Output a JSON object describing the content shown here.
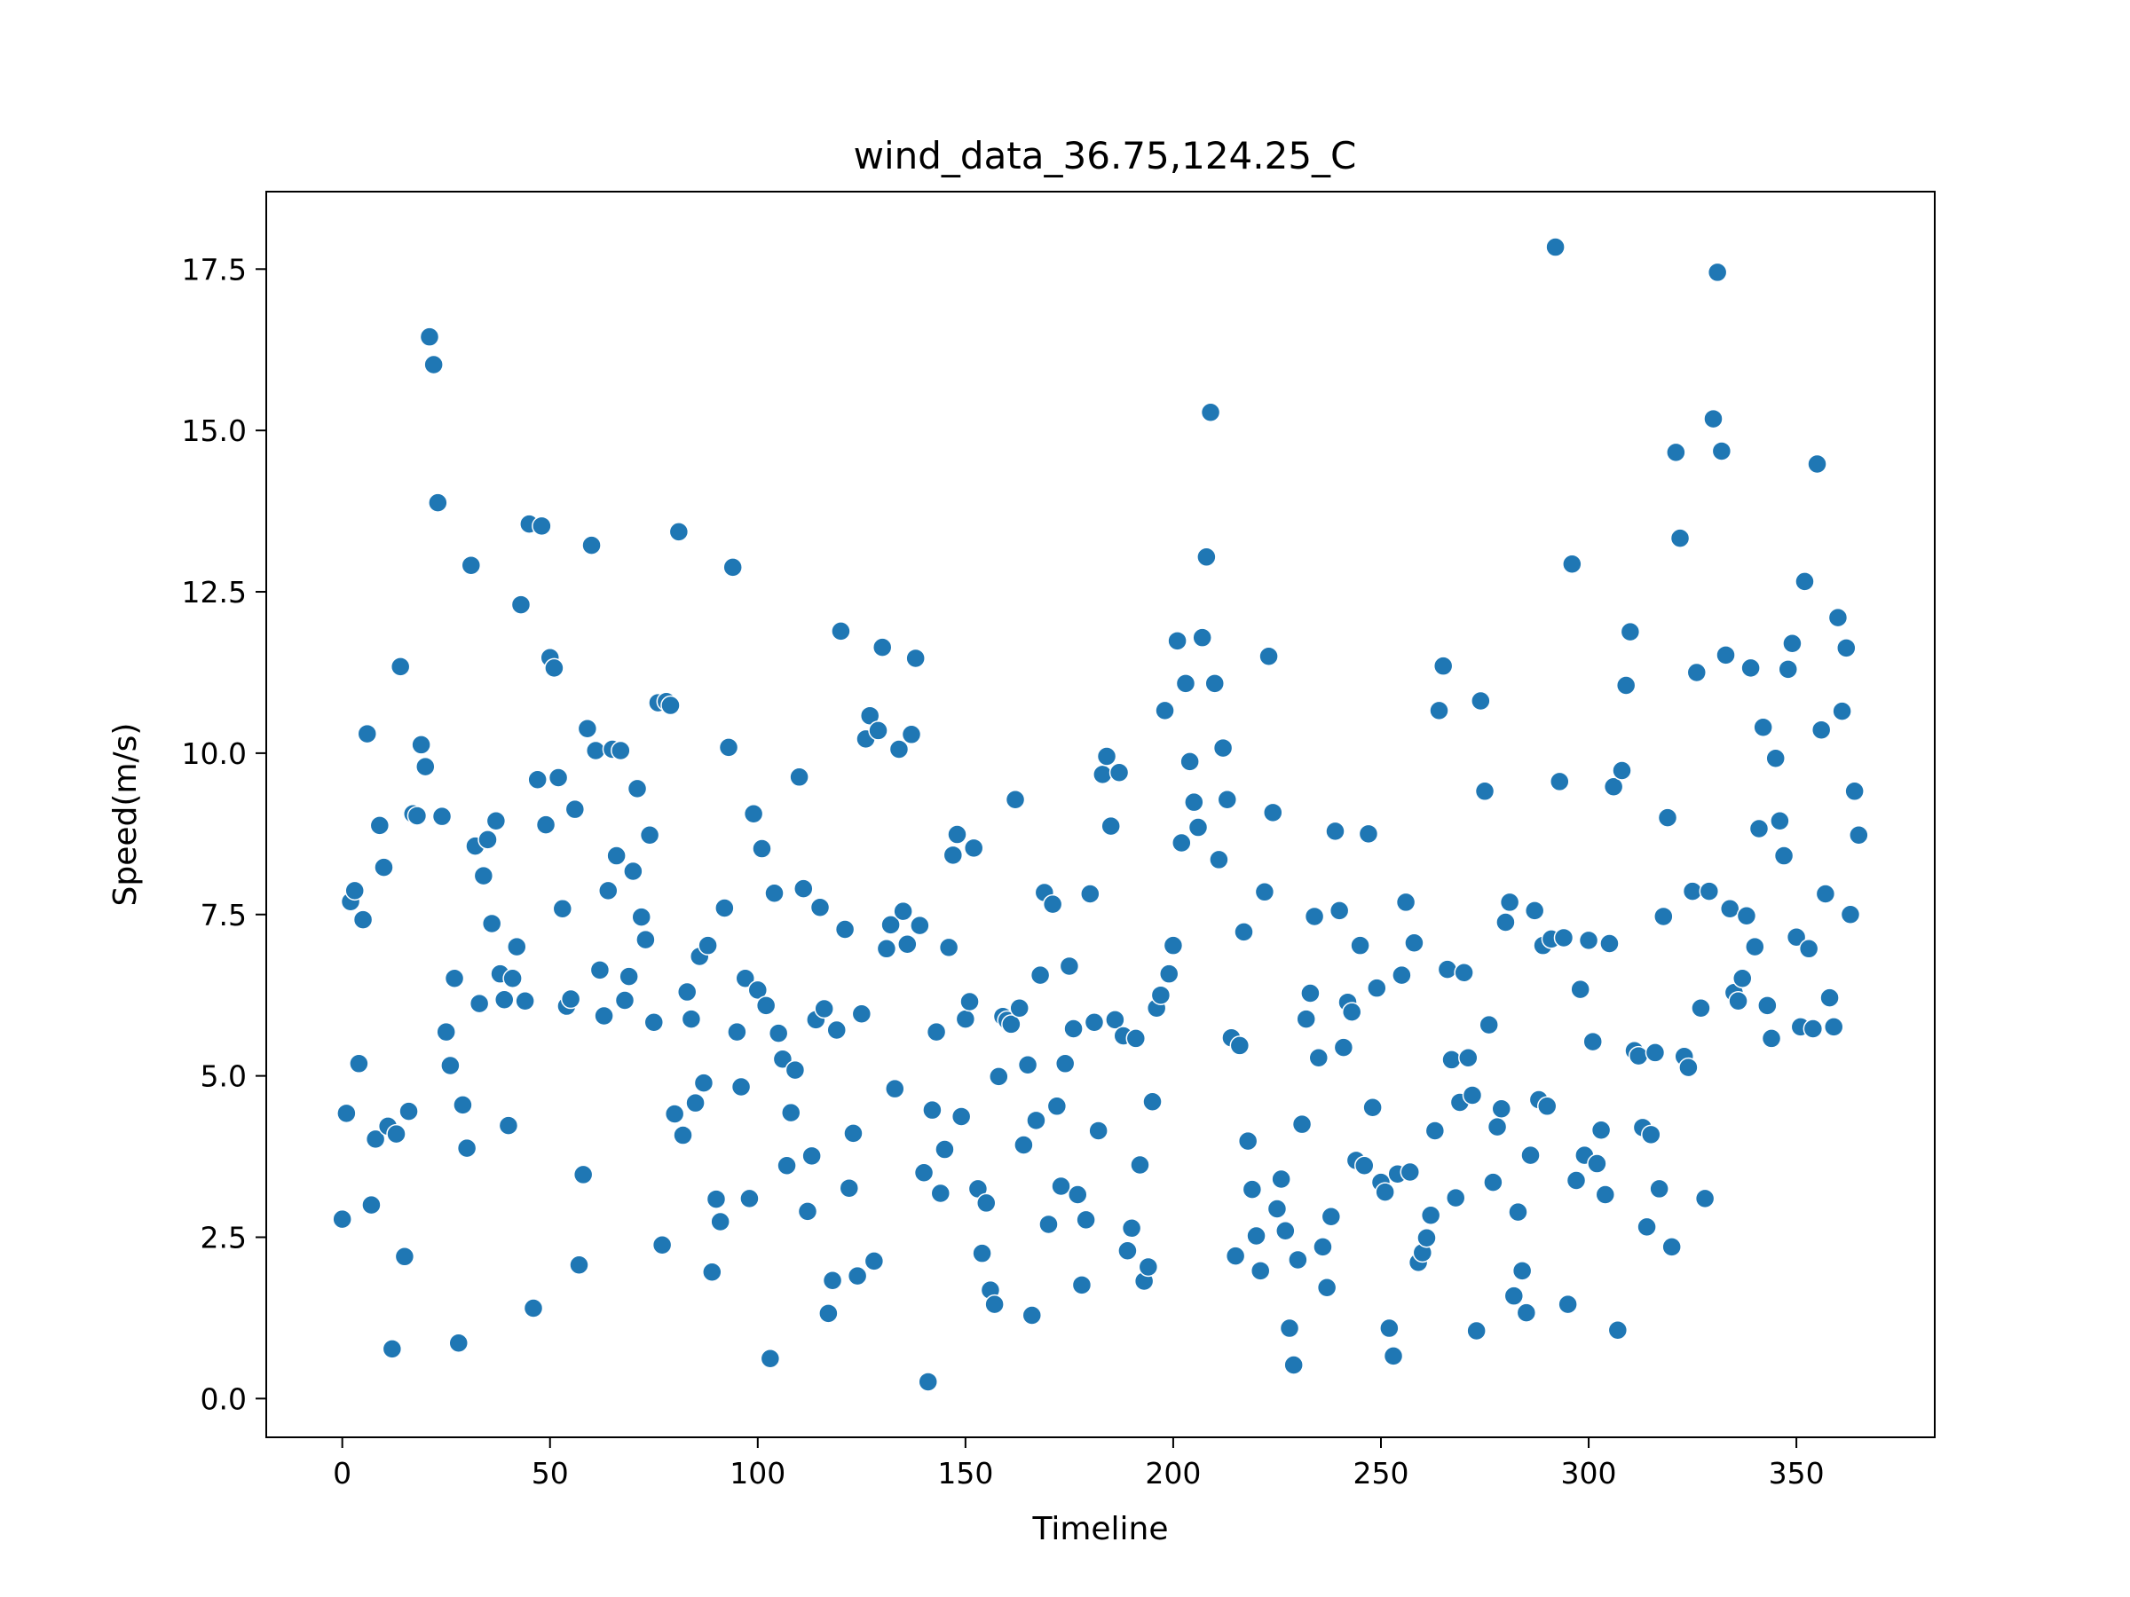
{
  "chart_data": {
    "type": "scatter",
    "title": "wind_data_36.75,124.25_C",
    "xlabel": "Timeline",
    "ylabel": "Speed(m/s)",
    "xlim": [
      -18.3,
      383.3
    ],
    "ylim": [
      -0.6,
      18.7
    ],
    "xticks": [
      0,
      50,
      100,
      150,
      200,
      250,
      300,
      350
    ],
    "yticks": [
      0.0,
      2.5,
      5.0,
      7.5,
      10.0,
      12.5,
      15.0,
      17.5
    ],
    "xtick_labels": [
      "0",
      "50",
      "100",
      "150",
      "200",
      "250",
      "300",
      "350"
    ],
    "ytick_labels": [
      "0.0",
      "2.5",
      "5.0",
      "7.5",
      "10.0",
      "12.5",
      "15.0",
      "17.5"
    ],
    "grid": false,
    "legend": "none",
    "marker_color": "#1f77b4",
    "x": [
      0,
      1,
      2,
      3,
      4,
      5,
      6,
      7,
      8,
      9,
      10,
      11,
      12,
      13,
      14,
      15,
      16,
      17,
      18,
      19,
      20,
      21,
      22,
      23,
      24,
      25,
      26,
      27,
      28,
      29,
      30,
      31,
      32,
      33,
      34,
      35,
      36,
      37,
      38,
      39,
      40,
      41,
      42,
      43,
      44,
      45,
      46,
      47,
      48,
      49,
      50,
      51,
      52,
      53,
      54,
      55,
      56,
      57,
      58,
      59,
      60,
      61,
      62,
      63,
      64,
      65,
      66,
      67,
      68,
      69,
      70,
      71,
      72,
      73,
      74,
      75,
      76,
      77,
      78,
      79,
      80,
      81,
      82,
      83,
      84,
      85,
      86,
      87,
      88,
      89,
      90,
      91,
      92,
      93,
      94,
      95,
      96,
      97,
      98,
      99,
      100,
      101,
      102,
      103,
      104,
      105,
      106,
      107,
      108,
      109,
      110,
      111,
      112,
      113,
      114,
      115,
      116,
      117,
      118,
      119,
      120,
      121,
      122,
      123,
      124,
      125,
      126,
      127,
      128,
      129,
      130,
      131,
      132,
      133,
      134,
      135,
      136,
      137,
      138,
      139,
      140,
      141,
      142,
      143,
      144,
      145,
      146,
      147,
      148,
      149,
      150,
      151,
      152,
      153,
      154,
      155,
      156,
      157,
      158,
      159,
      160,
      161,
      162,
      163,
      164,
      165,
      166,
      167,
      168,
      169,
      170,
      171,
      172,
      173,
      174,
      175,
      176,
      177,
      178,
      179,
      180,
      181,
      182,
      183,
      184,
      185,
      186,
      187,
      188,
      189,
      190,
      191,
      192,
      193,
      194,
      195,
      196,
      197,
      198,
      199,
      200,
      201,
      202,
      203,
      204,
      205,
      206,
      207,
      208,
      209,
      210,
      211,
      212,
      213,
      214,
      215,
      216,
      217,
      218,
      219,
      220,
      221,
      222,
      223,
      224,
      225,
      226,
      227,
      228,
      229,
      230,
      231,
      232,
      233,
      234,
      235,
      236,
      237,
      238,
      239,
      240,
      241,
      242,
      243,
      244,
      245,
      246,
      247,
      248,
      249,
      250,
      251,
      252,
      253,
      254,
      255,
      256,
      257,
      258,
      259,
      260,
      261,
      262,
      263,
      264,
      265,
      266,
      267,
      268,
      269,
      270,
      271,
      272,
      273,
      274,
      275,
      276,
      277,
      278,
      279,
      280,
      281,
      282,
      283,
      284,
      285,
      286,
      287,
      288,
      289,
      290,
      291,
      292,
      293,
      294,
      295,
      296,
      297,
      298,
      299,
      300,
      301,
      302,
      303,
      304,
      305,
      306,
      307,
      308,
      309,
      310,
      311,
      312,
      313,
      314,
      315,
      316,
      317,
      318,
      319,
      320,
      321,
      322,
      323,
      324,
      325,
      326,
      327,
      328,
      329,
      330,
      331,
      332,
      333,
      334,
      335,
      336,
      337,
      338,
      339,
      340,
      341,
      342,
      343,
      344,
      345,
      346,
      347,
      348,
      349,
      350,
      351,
      352,
      353,
      354,
      355,
      356,
      357,
      358,
      359,
      360,
      361,
      362,
      363,
      364,
      365
    ],
    "y": [
      2.78,
      4.42,
      7.7,
      7.87,
      5.19,
      7.42,
      10.3,
      3.0,
      4.02,
      8.88,
      8.23,
      4.22,
      0.77,
      4.1,
      11.34,
      2.2,
      4.45,
      9.06,
      9.03,
      10.13,
      9.79,
      16.45,
      16.02,
      13.88,
      9.02,
      5.68,
      5.16,
      6.51,
      0.86,
      4.55,
      3.88,
      12.91,
      8.56,
      6.12,
      8.1,
      8.66,
      7.36,
      8.95,
      6.58,
      6.18,
      4.23,
      6.51,
      7.0,
      12.3,
      6.16,
      13.55,
      1.4,
      9.59,
      13.52,
      8.89,
      11.48,
      11.32,
      9.62,
      7.59,
      6.08,
      6.19,
      9.13,
      2.07,
      3.47,
      10.38,
      13.22,
      10.04,
      6.64,
      5.93,
      7.87,
      10.06,
      8.41,
      10.04,
      6.17,
      6.54,
      8.17,
      9.45,
      7.46,
      7.11,
      8.73,
      5.83,
      10.78,
      2.38,
      10.8,
      10.74,
      4.41,
      13.43,
      4.08,
      6.3,
      5.88,
      4.58,
      6.85,
      4.89,
      7.02,
      1.96,
      3.09,
      2.74,
      7.6,
      10.09,
      12.88,
      5.68,
      4.83,
      6.51,
      3.1,
      9.06,
      6.33,
      8.52,
      6.09,
      0.62,
      7.83,
      5.66,
      5.26,
      3.61,
      4.43,
      5.09,
      9.63,
      7.9,
      2.9,
      3.76,
      5.87,
      7.61,
      6.04,
      1.32,
      1.83,
      5.71,
      11.89,
      7.27,
      3.26,
      4.11,
      1.9,
      5.96,
      10.22,
      10.58,
      2.13,
      10.35,
      11.64,
      6.97,
      7.34,
      4.8,
      10.06,
      7.55,
      7.04,
      10.29,
      11.47,
      7.33,
      3.5,
      0.26,
      4.47,
      5.68,
      3.18,
      3.86,
      6.99,
      8.42,
      8.74,
      4.37,
      5.88,
      6.15,
      8.53,
      3.25,
      2.25,
      3.03,
      1.68,
      1.46,
      4.99,
      5.92,
      5.86,
      5.8,
      9.28,
      6.05,
      3.93,
      5.17,
      1.29,
      4.31,
      6.56,
      7.84,
      2.7,
      7.66,
      4.53,
      3.29,
      5.19,
      6.7,
      5.73,
      3.16,
      1.76,
      2.77,
      7.82,
      5.83,
      4.15,
      9.67,
      9.95,
      8.87,
      5.87,
      9.7,
      5.62,
      2.29,
      2.64,
      5.58,
      3.62,
      1.82,
      2.04,
      4.6,
      6.05,
      6.25,
      10.66,
      6.58,
      7.02,
      11.74,
      8.61,
      11.08,
      9.87,
      9.24,
      8.85,
      11.79,
      13.04,
      15.28,
      11.08,
      8.35,
      10.08,
      9.28,
      5.59,
      2.21,
      5.47,
      7.23,
      3.99,
      3.24,
      2.52,
      1.98,
      7.85,
      11.5,
      9.08,
      2.94,
      3.4,
      2.6,
      1.09,
      0.52,
      2.15,
      4.25,
      5.88,
      6.28,
      7.47,
      5.28,
      2.35,
      1.72,
      2.82,
      8.79,
      7.56,
      5.44,
      6.14,
      5.99,
      3.69,
      7.02,
      3.61,
      8.75,
      4.51,
      6.36,
      3.35,
      3.2,
      1.09,
      0.66,
      3.48,
      6.56,
      7.69,
      3.51,
      7.06,
      2.11,
      2.26,
      2.49,
      2.84,
      4.15,
      10.66,
      11.35,
      6.65,
      5.25,
      3.11,
      4.59,
      6.6,
      5.28,
      4.7,
      1.05,
      10.81,
      9.41,
      5.79,
      3.35,
      4.21,
      4.49,
      7.38,
      7.69,
      1.59,
      2.89,
      1.98,
      1.33,
      3.77,
      7.56,
      4.63,
      7.02,
      4.53,
      7.12,
      17.84,
      9.56,
      7.14,
      1.46,
      12.93,
      3.38,
      6.34,
      3.77,
      7.1,
      5.53,
      3.64,
      4.16,
      3.16,
      7.05,
      9.48,
      1.06,
      9.73,
      11.05,
      11.88,
      5.39,
      5.31,
      4.2,
      2.66,
      4.09,
      5.36,
      3.25,
      7.47,
      9.0,
      2.35,
      14.66,
      13.33,
      5.3,
      5.13,
      7.86,
      11.25,
      6.05,
      3.1,
      7.86,
      15.18,
      17.45,
      14.68,
      11.52,
      7.59,
      6.29,
      6.16,
      6.51,
      7.48,
      11.32,
      7.0,
      8.83,
      10.4,
      6.09,
      5.58,
      9.92,
      8.95,
      8.41,
      11.3,
      11.7,
      7.15,
      5.76,
      12.66,
      6.97,
      5.73,
      14.48,
      10.36,
      7.82,
      6.21,
      5.76,
      12.1,
      10.65,
      11.63,
      7.5,
      9.41,
      8.73
    ]
  }
}
